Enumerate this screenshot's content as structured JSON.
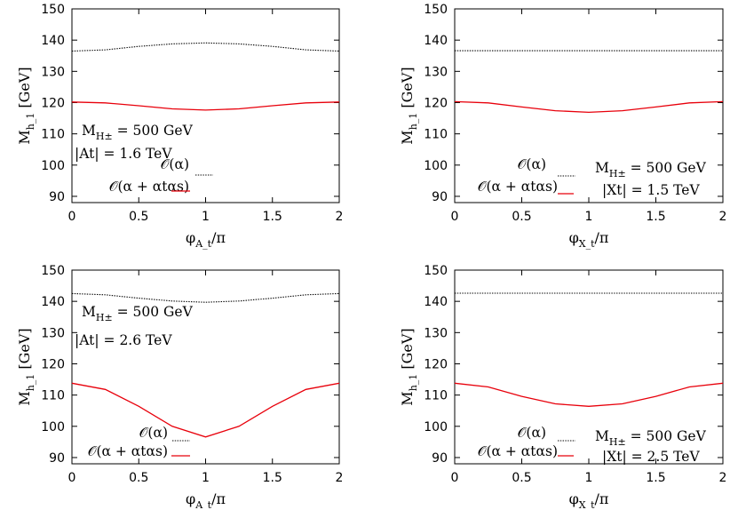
{
  "chart_data": [
    {
      "type": "line",
      "xlabel": "φ_{A_t}/π",
      "ylabel": "M_{h_1}  [GeV]",
      "xlim": [
        0,
        2
      ],
      "ylim": [
        88,
        150
      ],
      "xticks": [
        "0",
        "0.5",
        "1",
        "1.5",
        "2"
      ],
      "yticks": [
        "90",
        "100",
        "110",
        "120",
        "130",
        "140",
        "150"
      ],
      "grid": false,
      "legend_position": "bottom-left",
      "annotations": [
        "M_{H±} = 500 GeV",
        "|A_t| = 1.6 TeV"
      ],
      "series": [
        {
          "name": "𝒪(α)",
          "style": "dotted",
          "color": "#000000",
          "x": [
            0,
            0.25,
            0.5,
            0.75,
            1,
            1.25,
            1.5,
            1.75,
            2
          ],
          "y": [
            136.5,
            136.9,
            138.0,
            138.8,
            139.1,
            138.8,
            138.0,
            136.9,
            136.5
          ]
        },
        {
          "name": "𝒪(α + α_tα_s)",
          "style": "solid",
          "color": "#e8000b",
          "x": [
            0,
            0.25,
            0.5,
            0.75,
            1,
            1.25,
            1.5,
            1.75,
            2
          ],
          "y": [
            120.2,
            119.9,
            119.0,
            118.0,
            117.6,
            118.0,
            119.0,
            119.9,
            120.2
          ]
        }
      ]
    },
    {
      "type": "line",
      "xlabel": "φ_{X_t}/π",
      "ylabel": "M_{h_1}  [GeV]",
      "xlim": [
        0,
        2
      ],
      "ylim": [
        88,
        150
      ],
      "xticks": [
        "0",
        "0.5",
        "1",
        "1.5",
        "2"
      ],
      "yticks": [
        "90",
        "100",
        "110",
        "120",
        "130",
        "140",
        "150"
      ],
      "grid": false,
      "legend_position": "bottom-left",
      "annotations": [
        "M_{H±} = 500 GeV",
        "|X_t| = 1.5 TeV"
      ],
      "series": [
        {
          "name": "𝒪(α)",
          "style": "dotted",
          "color": "#000000",
          "x": [
            0,
            0.25,
            0.5,
            0.75,
            1,
            1.25,
            1.5,
            1.75,
            2
          ],
          "y": [
            136.6,
            136.6,
            136.6,
            136.6,
            136.6,
            136.6,
            136.6,
            136.6,
            136.6
          ]
        },
        {
          "name": "𝒪(α + α_tα_s)",
          "style": "solid",
          "color": "#e8000b",
          "x": [
            0,
            0.25,
            0.5,
            0.75,
            1,
            1.25,
            1.5,
            1.75,
            2
          ],
          "y": [
            120.3,
            119.9,
            118.6,
            117.4,
            116.9,
            117.4,
            118.6,
            119.9,
            120.3
          ]
        }
      ]
    },
    {
      "type": "line",
      "xlabel": "φ_{A_t}/π",
      "ylabel": "M_{h_1}  [GeV]",
      "xlim": [
        0,
        2
      ],
      "ylim": [
        88,
        150
      ],
      "xticks": [
        "0",
        "0.5",
        "1",
        "1.5",
        "2"
      ],
      "yticks": [
        "90",
        "100",
        "110",
        "120",
        "130",
        "140",
        "150"
      ],
      "grid": false,
      "legend_position": "bottom-left",
      "annotations": [
        "M_{H±} = 500 GeV",
        "|A_t| = 2.6 TeV"
      ],
      "series": [
        {
          "name": "𝒪(α)",
          "style": "dotted",
          "color": "#000000",
          "x": [
            0,
            0.25,
            0.5,
            0.75,
            1,
            1.25,
            1.5,
            1.75,
            2
          ],
          "y": [
            142.5,
            142.1,
            141.0,
            140.1,
            139.7,
            140.1,
            141.0,
            142.1,
            142.5
          ]
        },
        {
          "name": "𝒪(α + α_tα_s)",
          "style": "solid",
          "color": "#e8000b",
          "x": [
            0,
            0.25,
            0.5,
            0.75,
            1,
            1.25,
            1.5,
            1.75,
            2
          ],
          "y": [
            113.8,
            111.8,
            106.4,
            100.0,
            96.6,
            100.0,
            106.4,
            111.8,
            113.8
          ]
        }
      ]
    },
    {
      "type": "line",
      "xlabel": "φ_{X_t}/π",
      "ylabel": "M_{h_1}  [GeV]",
      "xlim": [
        0,
        2
      ],
      "ylim": [
        88,
        150
      ],
      "xticks": [
        "0",
        "0.5",
        "1",
        "1.5",
        "2"
      ],
      "yticks": [
        "90",
        "100",
        "110",
        "120",
        "130",
        "140",
        "150"
      ],
      "grid": false,
      "legend_position": "bottom-left",
      "annotations": [
        "M_{H±} = 500 GeV",
        "|X_t| = 2.5 TeV"
      ],
      "series": [
        {
          "name": "𝒪(α)",
          "style": "dotted",
          "color": "#000000",
          "x": [
            0,
            0.25,
            0.5,
            0.75,
            1,
            1.25,
            1.5,
            1.75,
            2
          ],
          "y": [
            142.6,
            142.6,
            142.6,
            142.6,
            142.6,
            142.6,
            142.6,
            142.6,
            142.6
          ]
        },
        {
          "name": "𝒪(α + α_tα_s)",
          "style": "solid",
          "color": "#e8000b",
          "x": [
            0,
            0.25,
            0.5,
            0.75,
            1,
            1.25,
            1.5,
            1.75,
            2
          ],
          "y": [
            113.8,
            112.6,
            109.6,
            107.2,
            106.4,
            107.2,
            109.6,
            112.6,
            113.8
          ]
        }
      ]
    }
  ]
}
